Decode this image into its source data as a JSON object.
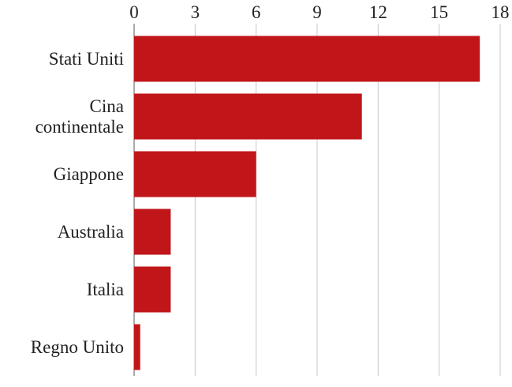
{
  "chart_data": {
    "type": "bar",
    "orientation": "horizontal",
    "categories": [
      "Stati Uniti",
      "Cina continentale",
      "Giappone",
      "Australia",
      "Italia",
      "Regno Unito"
    ],
    "values": [
      17.0,
      11.2,
      6.0,
      1.8,
      1.8,
      0.3
    ],
    "color": "#c0161a",
    "xlim": [
      0,
      18
    ],
    "xticks": [
      0,
      3,
      6,
      9,
      12,
      15,
      18
    ],
    "grid": true
  }
}
